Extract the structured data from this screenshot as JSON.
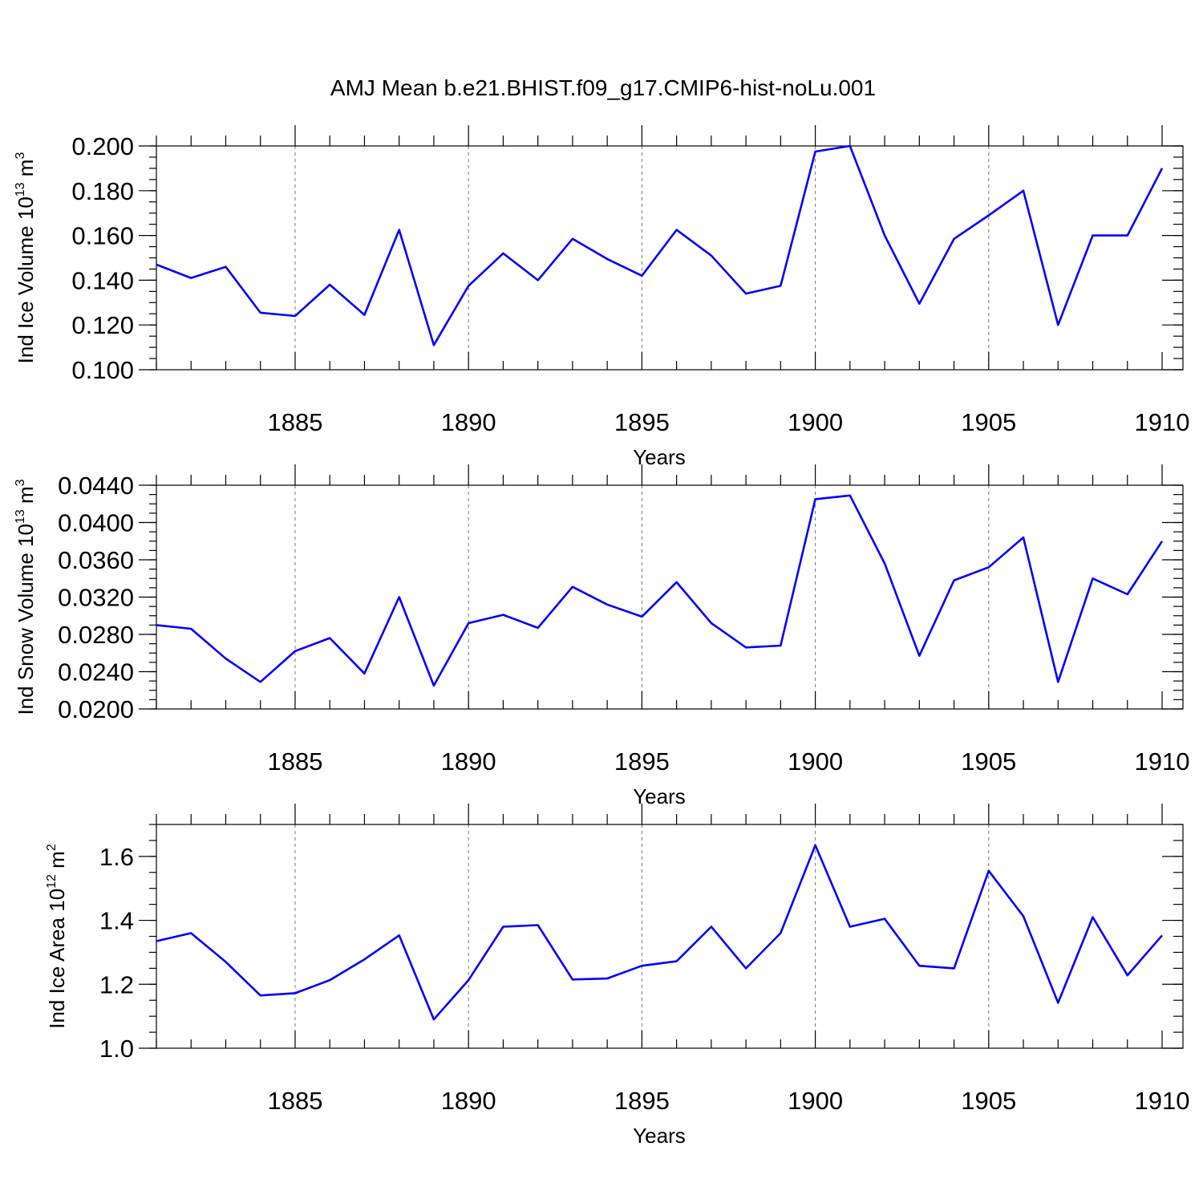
{
  "title": "AMJ Mean b.e21.BHIST.f09_g17.CMIP6-hist-noLu.001",
  "line_color": "#0000ff",
  "chart_data": [
    {
      "type": "line",
      "id": "ice-volume",
      "ylabel": "Ind Ice Volume",
      "ylabel_unit_base": "10",
      "ylabel_unit_exp": "13",
      "ylabel_unit_suffix": " m",
      "ylabel_unit_suffix_exp": "3",
      "xlabel": "Years",
      "xlim": [
        1881,
        1910
      ],
      "ylim": [
        0.1,
        0.2
      ],
      "xticks": [
        1885,
        1890,
        1895,
        1900,
        1905,
        1910
      ],
      "xtick_labels": [
        "1885",
        "1890",
        "1895",
        "1900",
        "1905",
        "1910"
      ],
      "yticks": [
        0.1,
        0.12,
        0.14,
        0.16,
        0.18,
        0.2
      ],
      "ytick_labels": [
        "0.100",
        "0.120",
        "0.140",
        "0.160",
        "0.180",
        "0.200"
      ],
      "yminor": 0.005,
      "x": [
        1881,
        1882,
        1883,
        1884,
        1885,
        1886,
        1887,
        1888,
        1889,
        1890,
        1891,
        1892,
        1893,
        1894,
        1895,
        1896,
        1897,
        1898,
        1899,
        1900,
        1901,
        1902,
        1903,
        1904,
        1905,
        1906,
        1907,
        1908,
        1909,
        1910
      ],
      "values": [
        0.147,
        0.141,
        0.146,
        0.1255,
        0.124,
        0.138,
        0.1245,
        0.1625,
        0.111,
        0.1375,
        0.152,
        0.14,
        0.1585,
        0.1495,
        0.142,
        0.1625,
        0.151,
        0.134,
        0.1375,
        0.1975,
        0.2,
        0.16,
        0.1295,
        0.1585,
        0.169,
        0.18,
        0.12,
        0.16,
        0.16,
        0.19
      ]
    },
    {
      "type": "line",
      "id": "snow-volume",
      "ylabel": "Ind Snow Volume",
      "ylabel_unit_base": "10",
      "ylabel_unit_exp": "13",
      "ylabel_unit_suffix": " m",
      "ylabel_unit_suffix_exp": "3",
      "xlabel": "Years",
      "xlim": [
        1881,
        1910
      ],
      "ylim": [
        0.02,
        0.044
      ],
      "xticks": [
        1885,
        1890,
        1895,
        1900,
        1905,
        1910
      ],
      "xtick_labels": [
        "1885",
        "1890",
        "1895",
        "1900",
        "1905",
        "1910"
      ],
      "yticks": [
        0.02,
        0.024,
        0.028,
        0.032,
        0.036,
        0.04,
        0.044
      ],
      "ytick_labels": [
        "0.0200",
        "0.0240",
        "0.0280",
        "0.0320",
        "0.0360",
        "0.0400",
        "0.0440"
      ],
      "yminor": 0.001,
      "x": [
        1881,
        1882,
        1883,
        1884,
        1885,
        1886,
        1887,
        1888,
        1889,
        1890,
        1891,
        1892,
        1893,
        1894,
        1895,
        1896,
        1897,
        1898,
        1899,
        1900,
        1901,
        1902,
        1903,
        1904,
        1905,
        1906,
        1907,
        1908,
        1909,
        1910
      ],
      "values": [
        0.029,
        0.0286,
        0.0254,
        0.0229,
        0.0262,
        0.0276,
        0.0238,
        0.032,
        0.0225,
        0.0292,
        0.0301,
        0.0287,
        0.0331,
        0.0312,
        0.0299,
        0.0336,
        0.0292,
        0.0266,
        0.0268,
        0.0425,
        0.0429,
        0.0356,
        0.0257,
        0.0338,
        0.0352,
        0.0384,
        0.0229,
        0.034,
        0.0323,
        0.038
      ]
    },
    {
      "type": "line",
      "id": "ice-area",
      "ylabel": "Ind Ice Area",
      "ylabel_unit_base": "10",
      "ylabel_unit_exp": "12",
      "ylabel_unit_suffix": " m",
      "ylabel_unit_suffix_exp": "2",
      "xlabel": "Years",
      "xlim": [
        1881,
        1910
      ],
      "ylim": [
        1.0,
        1.7
      ],
      "xticks": [
        1885,
        1890,
        1895,
        1900,
        1905,
        1910
      ],
      "xtick_labels": [
        "1885",
        "1890",
        "1895",
        "1900",
        "1905",
        "1910"
      ],
      "yticks": [
        1.0,
        1.2,
        1.4,
        1.6
      ],
      "ytick_labels": [
        "1.0",
        "1.2",
        "1.4",
        "1.6"
      ],
      "yminor": 0.05,
      "x": [
        1881,
        1882,
        1883,
        1884,
        1885,
        1886,
        1887,
        1888,
        1889,
        1890,
        1891,
        1892,
        1893,
        1894,
        1895,
        1896,
        1897,
        1898,
        1899,
        1900,
        1901,
        1902,
        1903,
        1904,
        1905,
        1906,
        1907,
        1908,
        1909,
        1910
      ],
      "values": [
        1.335,
        1.36,
        1.27,
        1.165,
        1.172,
        1.213,
        1.278,
        1.353,
        1.09,
        1.213,
        1.38,
        1.385,
        1.215,
        1.218,
        1.258,
        1.272,
        1.38,
        1.25,
        1.36,
        1.635,
        1.38,
        1.405,
        1.258,
        1.25,
        1.555,
        1.413,
        1.142,
        1.41,
        1.228,
        1.353
      ]
    }
  ]
}
